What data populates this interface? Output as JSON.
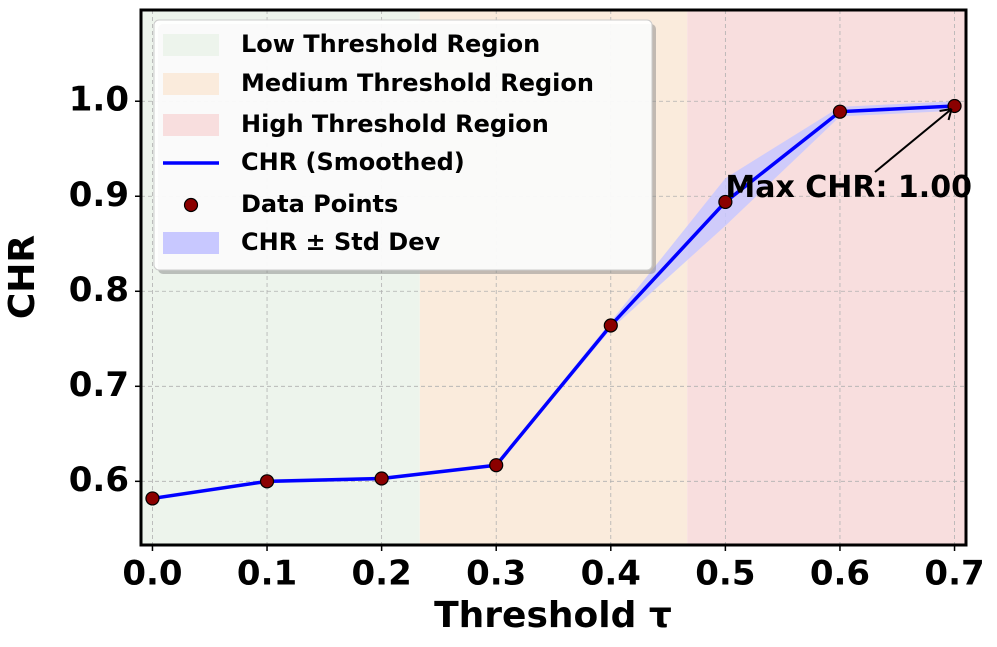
{
  "chart_data": {
    "type": "line",
    "x_label": "Threshold τ",
    "y_label": "CHR",
    "x": [
      0.0,
      0.1,
      0.2,
      0.3,
      0.4,
      0.5,
      0.6,
      0.7
    ],
    "series": [
      {
        "name": "CHR (Smoothed)",
        "color": "#0000ff",
        "marker_color": "#8b0000",
        "marker_name": "Data Points",
        "band_name": "CHR ± Std Dev",
        "band_color": "#c8c8ff",
        "values": [
          0.582,
          0.6,
          0.603,
          0.617,
          0.764,
          0.894,
          0.989,
          0.995
        ],
        "std": [
          0.002,
          0.002,
          0.002,
          0.002,
          0.004,
          0.025,
          0.005,
          0.005
        ]
      }
    ],
    "regions": [
      {
        "name": "Low Threshold Region",
        "color": "#edf4ec",
        "x": [
          -0.01,
          0.2333
        ]
      },
      {
        "name": "Medium Threshold Region",
        "color": "#faebdc",
        "x": [
          0.2333,
          0.4667
        ]
      },
      {
        "name": "High Threshold Region",
        "color": "#f8dede",
        "x": [
          0.4667,
          0.71
        ]
      }
    ],
    "annotation": {
      "text": "Max CHR: 1.00",
      "xy": [
        0.7,
        0.995
      ],
      "xytext": [
        0.5,
        0.908
      ]
    },
    "xlim": [
      -0.01,
      0.71
    ],
    "ylim": [
      0.533,
      1.096
    ],
    "xticks": [
      {
        "value": 0,
        "label": "0.0"
      },
      0.1,
      0.2,
      0.3,
      0.4,
      0.5,
      0.6,
      0.7
    ],
    "yticks": [
      0.6,
      0.7,
      0.8,
      0.9,
      {
        "value": 1,
        "label": "1.0"
      }
    ],
    "grid": true
  }
}
